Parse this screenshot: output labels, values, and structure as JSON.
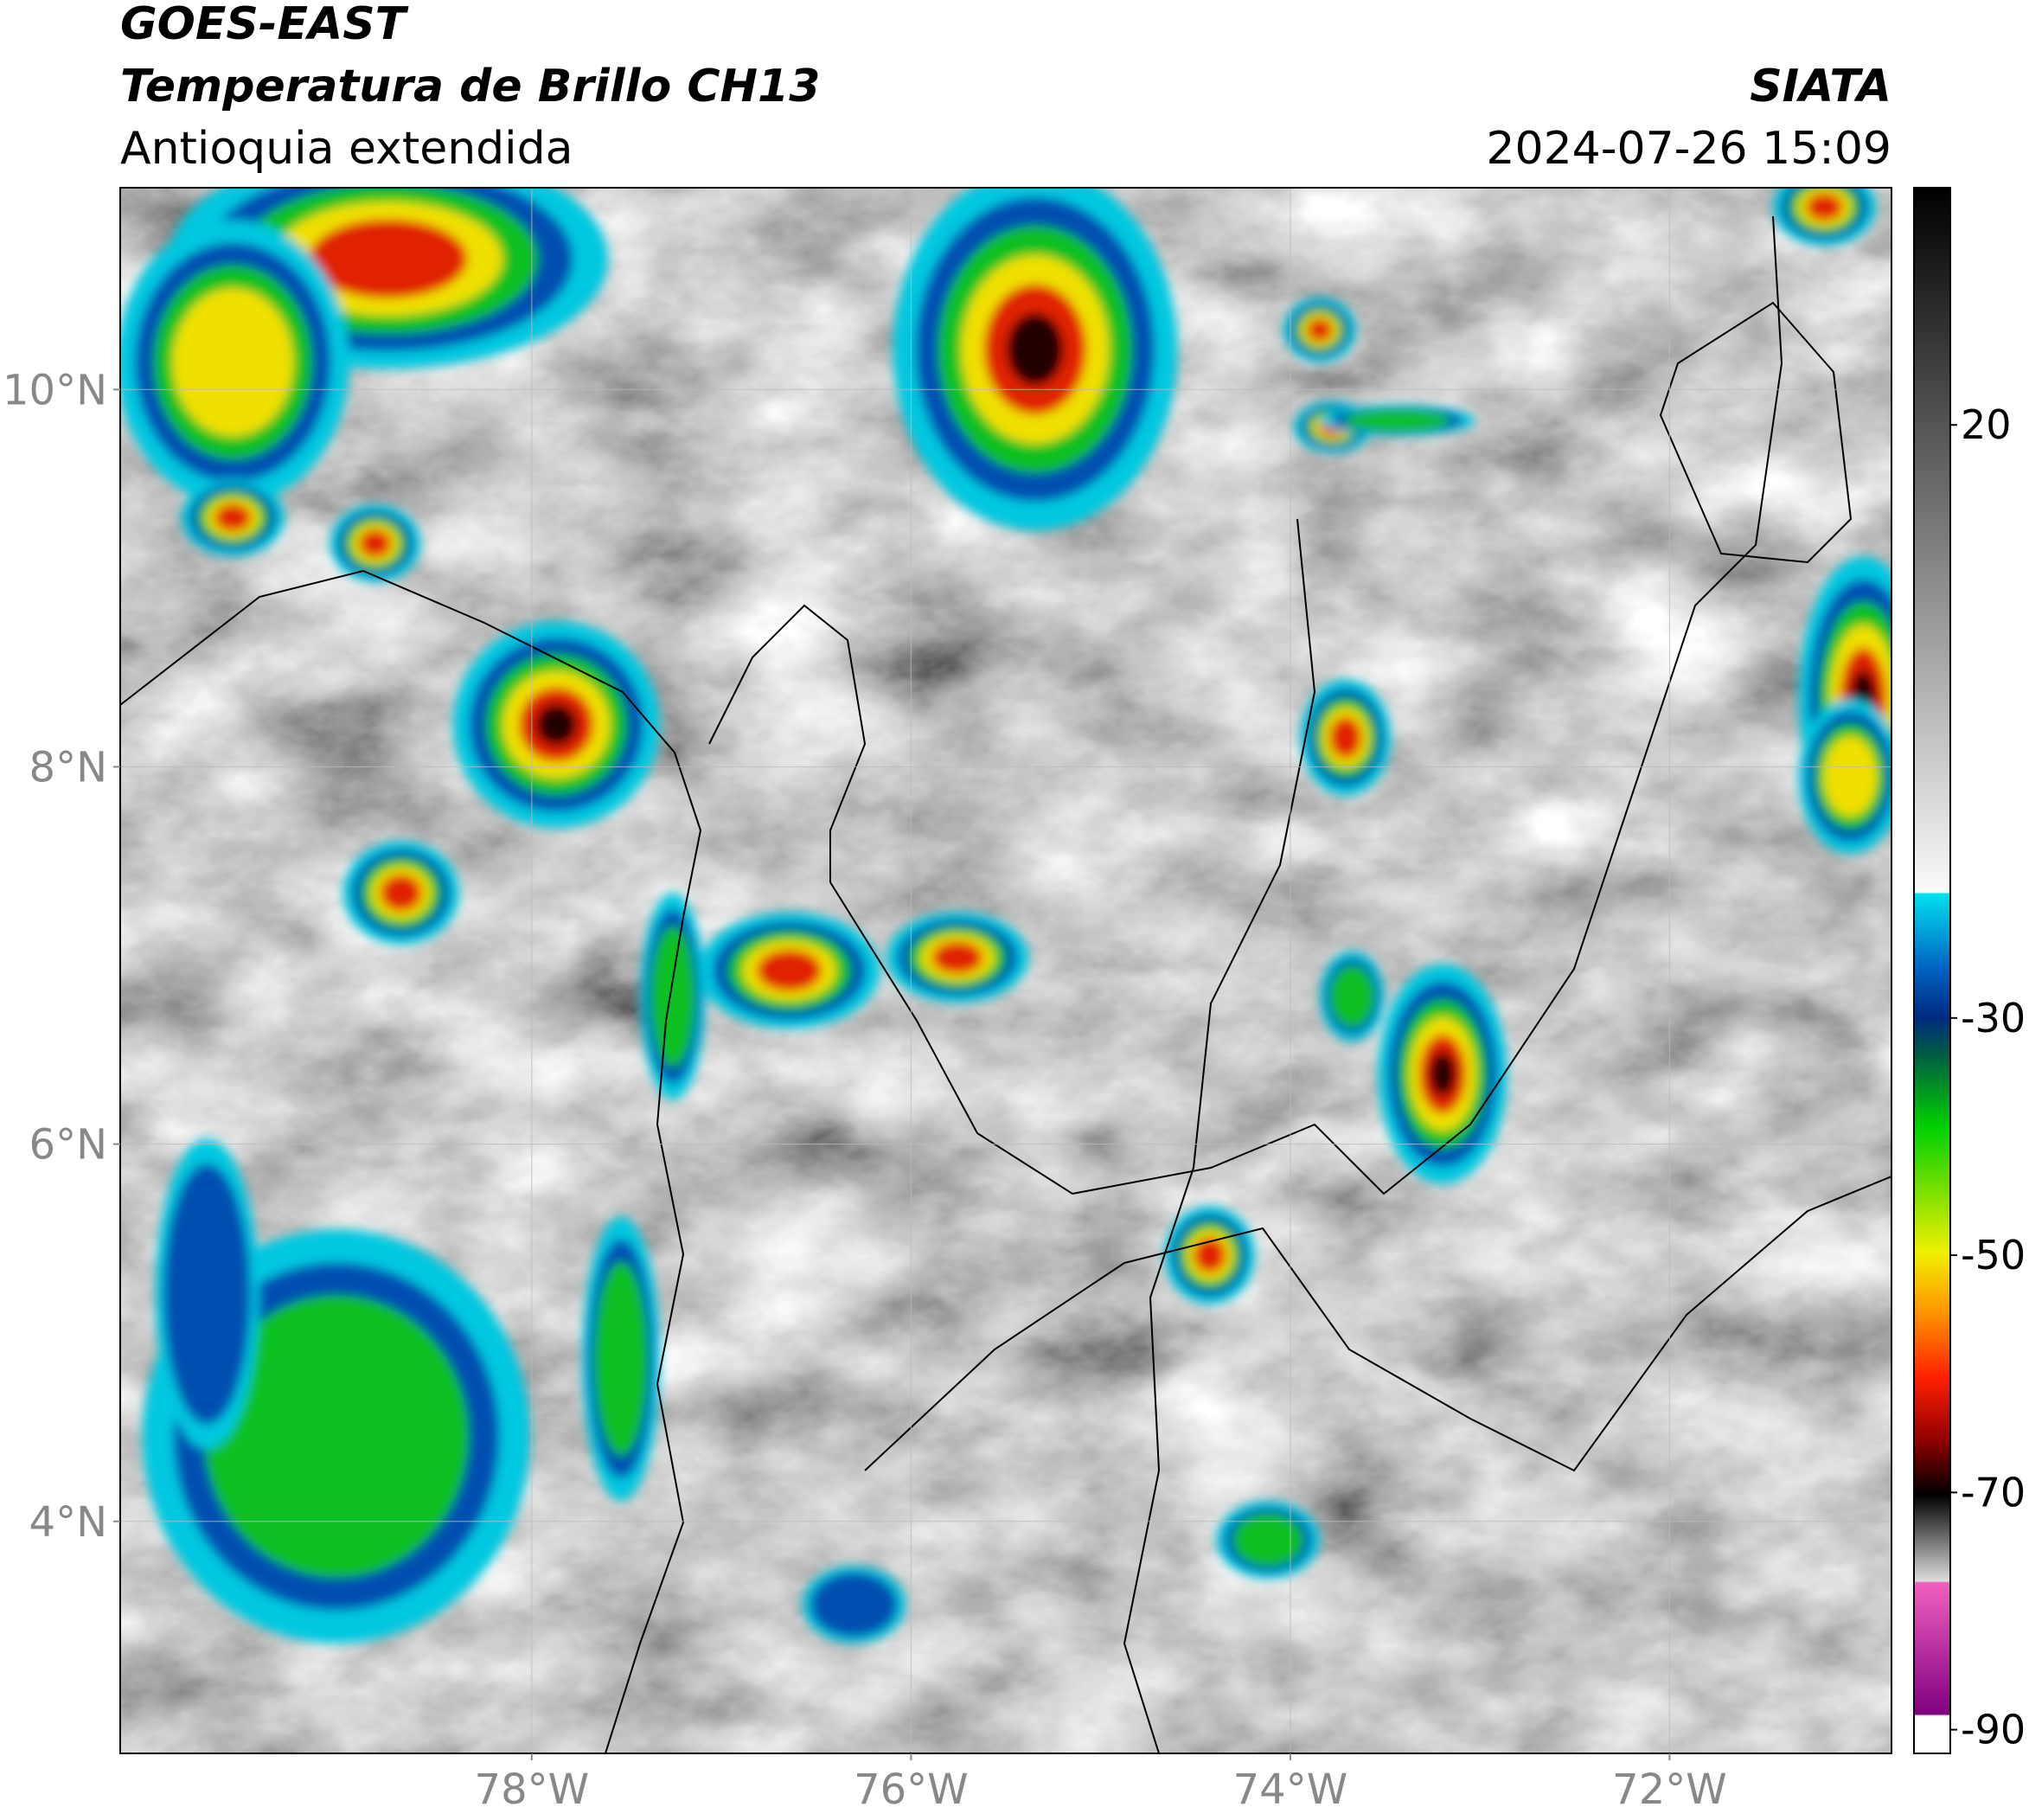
{
  "header": {
    "title": "GOES-EAST",
    "subtitle": "Temperatura de Brillo CH13",
    "region": "Antioquia extendida",
    "source": "SIATA",
    "datetime": "2024-07-26 15:09"
  },
  "map": {
    "xlim": [
      -80.17,
      -70.83
    ],
    "ylim": [
      2.77,
      11.07
    ],
    "xticks": [
      {
        "value": -78,
        "label": "78°W"
      },
      {
        "value": -76,
        "label": "76°W"
      },
      {
        "value": -74,
        "label": "74°W"
      },
      {
        "value": -72,
        "label": "72°W"
      }
    ],
    "yticks": [
      {
        "value": 4,
        "label": "4°N"
      },
      {
        "value": 6,
        "label": "6°N"
      },
      {
        "value": 8,
        "label": "8°N"
      },
      {
        "value": 10,
        "label": "10°N"
      }
    ],
    "grid": true
  },
  "colorbar": {
    "lim": [
      -92,
      40
    ],
    "ticks": [
      20,
      -30,
      -50,
      -70,
      -90
    ]
  }
}
